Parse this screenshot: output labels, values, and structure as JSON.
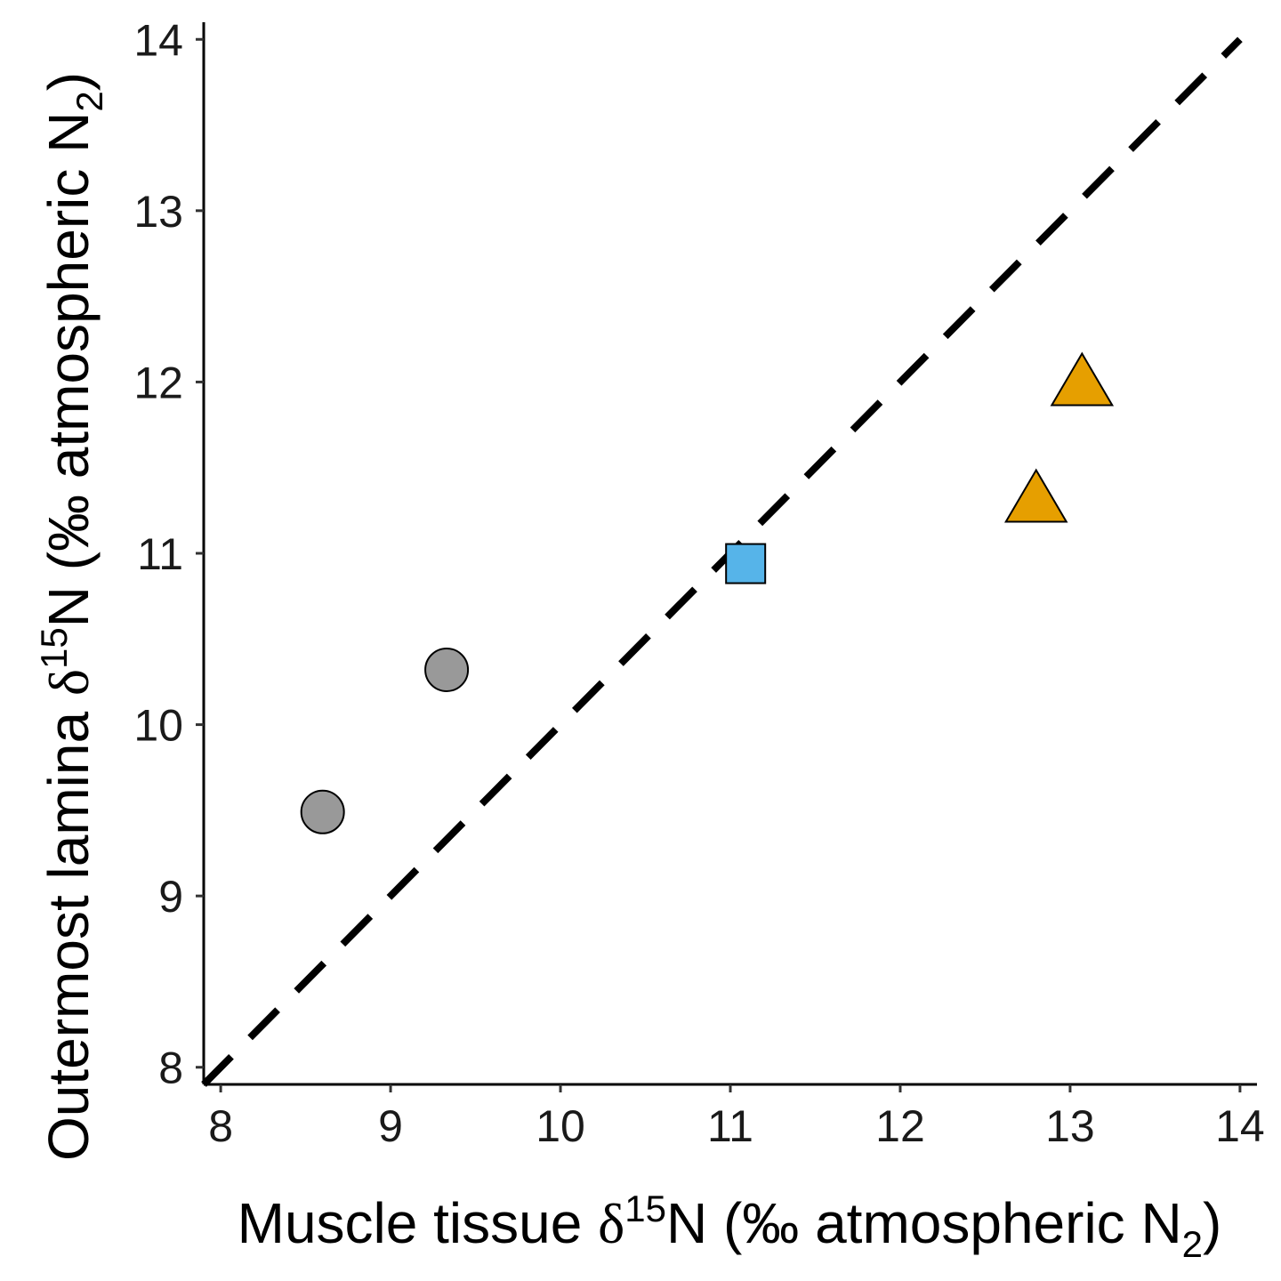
{
  "chart_data": {
    "type": "scatter",
    "title": "",
    "xlabel": {
      "prefix": "Muscle tissue ",
      "delta": "δ",
      "sup": "15",
      "mid": "N (‰ atmospheric N",
      "sub": "2",
      "suffix": ")"
    },
    "ylabel": {
      "prefix": "Outermost lamina ",
      "delta": "δ",
      "sup": "15",
      "mid": "N (‰ atmospheric N",
      "sub": "2",
      "suffix": ")"
    },
    "xlim": [
      7.9,
      14.1
    ],
    "ylim": [
      7.9,
      14.1
    ],
    "xticks": [
      "8",
      "9",
      "10",
      "11",
      "12",
      "13",
      "14"
    ],
    "yticks": [
      "8",
      "9",
      "10",
      "11",
      "12",
      "13",
      "14"
    ],
    "grid": false,
    "legend": "none",
    "reference_line": {
      "type": "1:1",
      "style": "dashed",
      "color": "#000000",
      "from": [
        7.9,
        7.9
      ],
      "to": [
        14.0,
        14.0
      ]
    },
    "series": [
      {
        "shape": "circle",
        "color": "#999999",
        "points": [
          {
            "x": 8.6,
            "y": 9.49
          },
          {
            "x": 9.33,
            "y": 10.32
          }
        ]
      },
      {
        "shape": "square",
        "color": "#56B4E9",
        "points": [
          {
            "x": 11.09,
            "y": 10.94
          }
        ]
      },
      {
        "shape": "triangle",
        "color": "#E69F00",
        "points": [
          {
            "x": 12.8,
            "y": 11.32
          },
          {
            "x": 13.07,
            "y": 12.0
          }
        ]
      }
    ]
  }
}
